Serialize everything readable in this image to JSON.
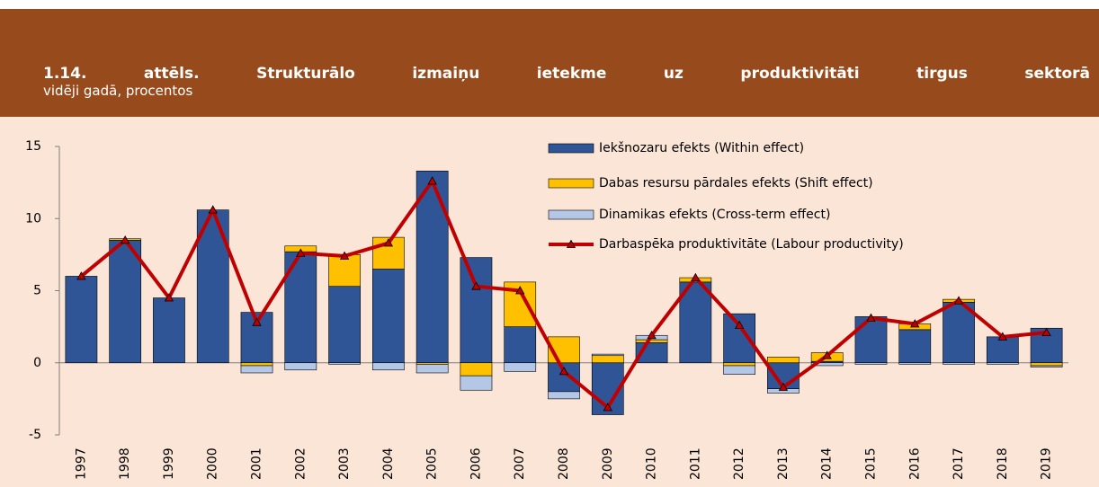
{
  "chart_data": {
    "type": "bar",
    "stacked": true,
    "title": "1.14. attēls. Strukturālo izmaiņu ietekme uz produktivitāti tirgus sektorā",
    "subtitle": "vidēji gadā, procentos",
    "categories": [
      "1997",
      "1998",
      "1999",
      "2000",
      "2001",
      "2002",
      "2003",
      "2004",
      "2005",
      "2006",
      "2007",
      "2008",
      "2009",
      "2010",
      "2011",
      "2012",
      "2013",
      "2014",
      "2015",
      "2016",
      "2017",
      "2018",
      "2019"
    ],
    "series": [
      {
        "name": "Iekšnozaru efekts (Within effect)",
        "color": "#2F5597",
        "type": "bar",
        "values": [
          6.0,
          8.5,
          4.5,
          10.6,
          3.5,
          7.7,
          5.3,
          6.5,
          13.3,
          7.3,
          2.5,
          -2.0,
          -3.6,
          1.4,
          5.6,
          3.4,
          -1.8,
          0.1,
          3.2,
          2.3,
          4.2,
          1.8,
          2.4
        ]
      },
      {
        "name": "Dabas resursu pārdales efekts (Shift effect)",
        "color": "#FFC000",
        "type": "bar",
        "values": [
          0,
          0.1,
          0,
          0,
          -0.2,
          0.4,
          2.2,
          2.2,
          -0.1,
          -0.9,
          3.1,
          1.8,
          0.5,
          0.2,
          0.3,
          -0.2,
          0.4,
          0.6,
          0,
          0.4,
          0.2,
          0,
          -0.2
        ]
      },
      {
        "name": "Dinamikas efekts (Cross-term effect)",
        "color": "#B4C7E7",
        "type": "bar",
        "values": [
          0,
          0,
          0,
          0,
          -0.5,
          -0.5,
          -0.1,
          -0.5,
          -0.6,
          -1.0,
          -0.6,
          -0.5,
          0.1,
          0.3,
          0,
          -0.6,
          -0.3,
          -0.2,
          -0.1,
          -0.1,
          -0.1,
          -0.1,
          -0.1
        ]
      },
      {
        "name": "Darbaspēka produktivitāte (Labour productivity)",
        "color": "#C00000",
        "type": "line",
        "values": [
          6.0,
          8.5,
          4.5,
          10.6,
          2.8,
          7.6,
          7.4,
          8.3,
          12.6,
          5.3,
          5.0,
          -0.6,
          -3.1,
          1.9,
          5.9,
          2.6,
          -1.7,
          0.5,
          3.1,
          2.7,
          4.3,
          1.8,
          2.1
        ]
      }
    ],
    "ylim": [
      -5,
      15
    ],
    "yticks": [
      -5,
      0,
      5,
      10,
      15
    ],
    "grid": false,
    "legend": "top-right"
  }
}
